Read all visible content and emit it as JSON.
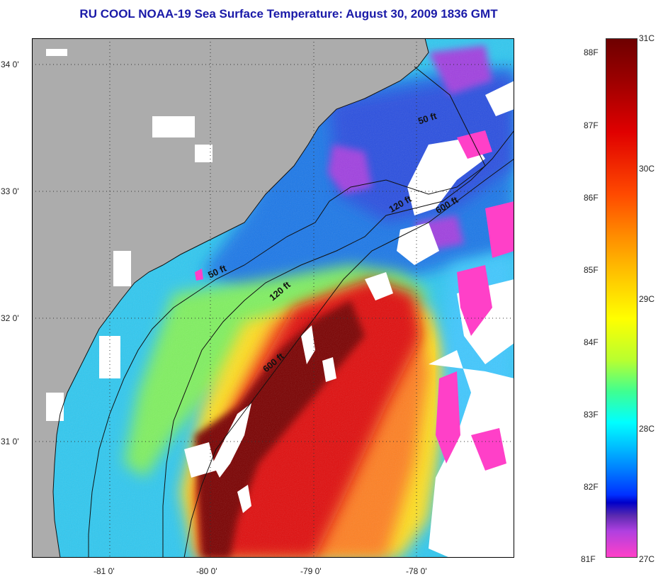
{
  "title": "RU COOL  NOAA-19  Sea Surface Temperature:  August 30, 2009 1836 GMT",
  "lat_labels": [
    "34 0'",
    "33 0'",
    "32 0'",
    "31 0'"
  ],
  "lon_labels": [
    "-81 0'",
    "-80 0'",
    "-79 0'",
    "-78 0'"
  ],
  "depth_contours": {
    "labels": [
      "50 ft",
      "50 ft",
      "120 ft",
      "120 ft",
      "600 ft",
      "600 ft"
    ]
  },
  "legend": {
    "fahrenheit": [
      "88F",
      "87F",
      "86F",
      "85F",
      "84F",
      "83F",
      "82F",
      "81F"
    ],
    "celsius": [
      "31C",
      "30C",
      "29C",
      "28C",
      "27C"
    ]
  },
  "colors": {
    "land": "#acacac",
    "cloud": "#ffffff",
    "title": "#1a1aa8",
    "contour": "#111111"
  }
}
